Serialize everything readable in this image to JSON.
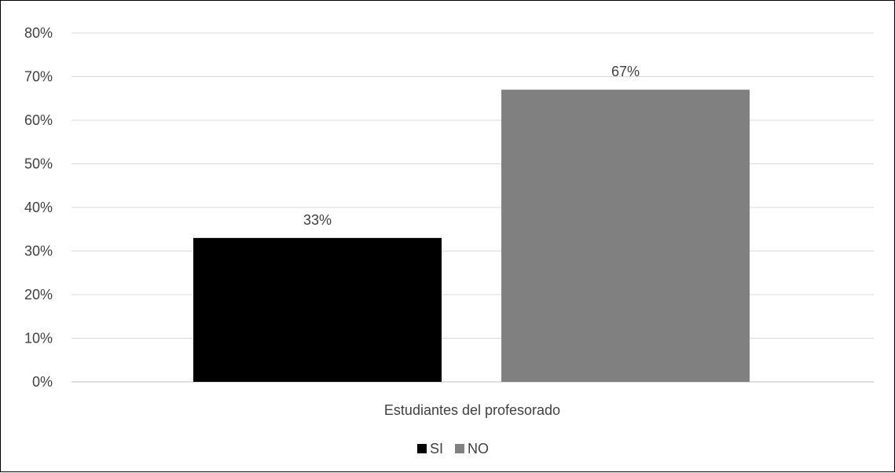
{
  "chart_data": {
    "type": "bar",
    "categories": [
      "Estudiantes del profesorado"
    ],
    "series": [
      {
        "name": "SI",
        "values": [
          33
        ],
        "label": "33%",
        "color": "#000000"
      },
      {
        "name": "NO",
        "values": [
          67
        ],
        "label": "67%",
        "color": "#808080"
      }
    ],
    "yticks": [
      "0%",
      "10%",
      "20%",
      "30%",
      "40%",
      "50%",
      "60%",
      "70%",
      "80%"
    ],
    "ylim": [
      0,
      80
    ],
    "grid": true,
    "gridColor": "#d9d9d9",
    "legend": "bottom"
  }
}
